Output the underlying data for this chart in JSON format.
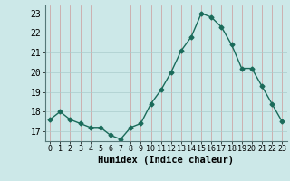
{
  "x": [
    0,
    1,
    2,
    3,
    4,
    5,
    6,
    7,
    8,
    9,
    10,
    11,
    12,
    13,
    14,
    15,
    16,
    17,
    18,
    19,
    20,
    21,
    22,
    23
  ],
  "y": [
    17.6,
    18.0,
    17.6,
    17.4,
    17.2,
    17.2,
    16.8,
    16.6,
    17.2,
    17.4,
    18.4,
    19.1,
    20.0,
    21.1,
    21.8,
    23.0,
    22.8,
    22.3,
    21.4,
    20.2,
    20.2,
    19.3,
    18.4,
    17.5
  ],
  "line_color": "#1a6b5a",
  "marker": "D",
  "markersize": 2.5,
  "linewidth": 1.0,
  "bg_color": "#cce8e8",
  "grid_color": "#aacccc",
  "xlabel": "Humidex (Indice chaleur)",
  "ylim": [
    16.5,
    23.4
  ],
  "yticks": [
    17,
    18,
    19,
    20,
    21,
    22,
    23
  ],
  "xticks": [
    0,
    1,
    2,
    3,
    4,
    5,
    6,
    7,
    8,
    9,
    10,
    11,
    12,
    13,
    14,
    15,
    16,
    17,
    18,
    19,
    20,
    21,
    22,
    23
  ]
}
